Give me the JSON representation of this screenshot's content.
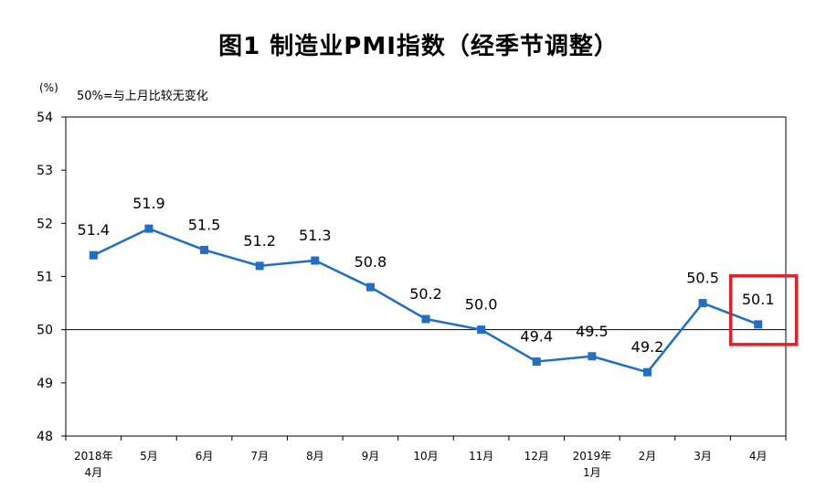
{
  "chart_data": {
    "type": "line",
    "title": "图1  制造业PMI指数（经季节调整）",
    "unit_label": "(%)",
    "note": "50%=与上月比较无变化",
    "ylim": [
      48,
      54
    ],
    "y_ticks": [
      "54",
      "53",
      "52",
      "51",
      "50",
      "49",
      "48"
    ],
    "reference_line": 50,
    "categories": [
      [
        "2018年",
        "4月"
      ],
      [
        "5月"
      ],
      [
        "6月"
      ],
      [
        "7月"
      ],
      [
        "8月"
      ],
      [
        "9月"
      ],
      [
        "10月"
      ],
      [
        "11月"
      ],
      [
        "12月"
      ],
      [
        "2019年",
        "1月"
      ],
      [
        "2月"
      ],
      [
        "3月"
      ],
      [
        "4月"
      ]
    ],
    "values": [
      51.4,
      51.9,
      51.5,
      51.2,
      51.3,
      50.8,
      50.2,
      50.0,
      49.4,
      49.5,
      49.2,
      50.5,
      50.1
    ],
    "value_labels": [
      "51.4",
      "51.9",
      "51.5",
      "51.2",
      "51.3",
      "50.8",
      "50.2",
      "50.0",
      "49.4",
      "49.5",
      "49.2",
      "50.5",
      "50.1"
    ],
    "line_color": "#1f6fc5",
    "highlight_color": "#e0202a",
    "highlight_index": 12,
    "grid": false,
    "legend": "none"
  }
}
